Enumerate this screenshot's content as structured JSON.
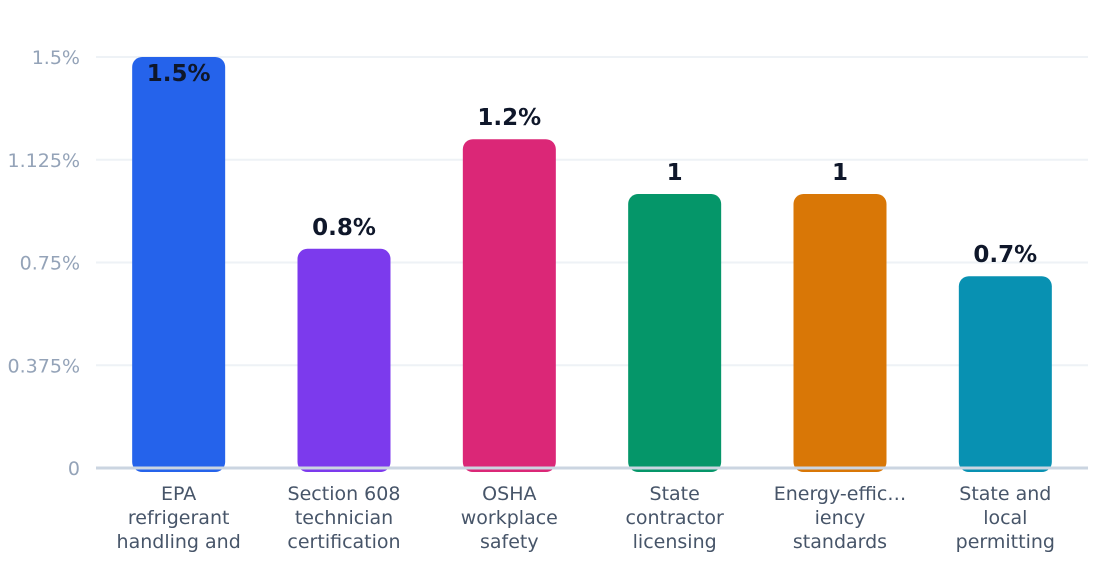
{
  "chart_data": {
    "type": "bar",
    "categories": [
      [
        "EPA",
        "refrigerant",
        "handling and"
      ],
      [
        "Section 608",
        "technician",
        "certification"
      ],
      [
        "OSHA",
        "workplace",
        "safety"
      ],
      [
        "State",
        "contractor",
        "licensing"
      ],
      [
        "Energy-effic…",
        "iency",
        "standards"
      ],
      [
        "State and",
        "local",
        "permitting"
      ]
    ],
    "values": [
      1.5,
      0.8,
      1.2,
      1,
      1,
      0.7
    ],
    "value_labels": [
      "1.5%",
      "0.8%",
      "1.2%",
      "1",
      "1",
      "0.7%"
    ],
    "colors": [
      "#2563eb",
      "#7c3aed",
      "#db2777",
      "#059669",
      "#d97706",
      "#0891b2"
    ],
    "yticks": [
      0,
      0.375,
      0.75,
      1.125,
      1.5
    ],
    "ytick_labels": [
      "0",
      "0.375%",
      "0.75%",
      "1.125%",
      "1.5%"
    ],
    "ylim": [
      0,
      1.5
    ],
    "grid": true,
    "legend": "none"
  }
}
